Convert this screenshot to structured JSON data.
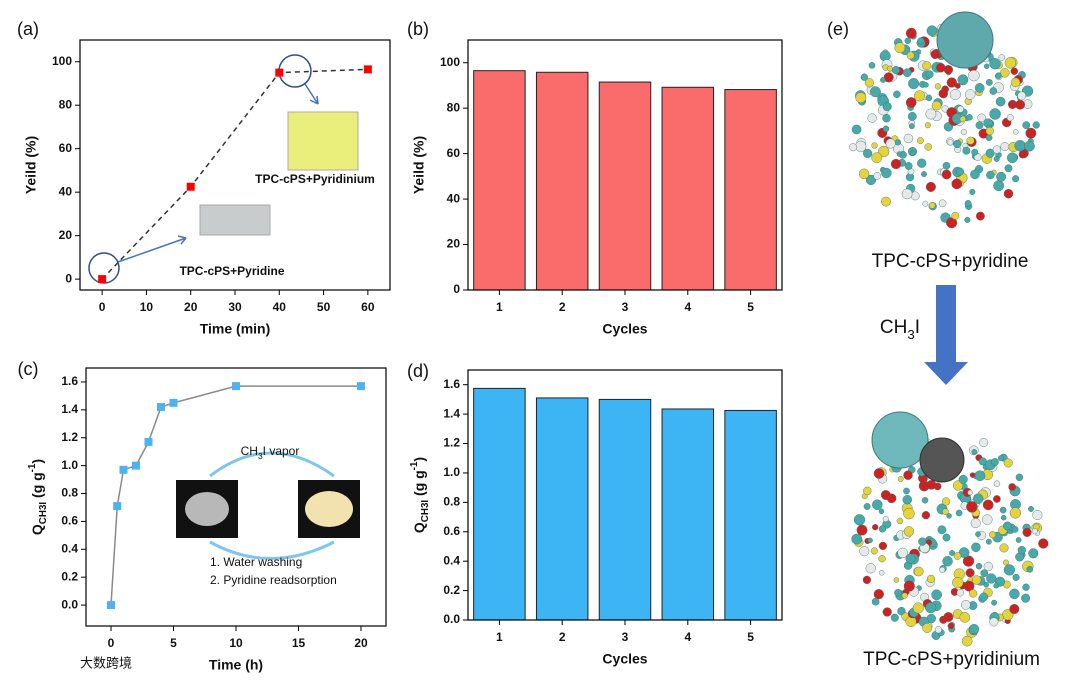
{
  "chart_data": [
    {
      "type": "line",
      "label": "(a)",
      "x": [
        0,
        20,
        40,
        60
      ],
      "values": [
        0,
        42.5,
        95,
        96.5
      ],
      "color": "#ff0000",
      "line_color": "#333333",
      "line_style": "dashed",
      "marker": "square",
      "xlim": [
        -5,
        65
      ],
      "xticks": [
        0,
        10,
        20,
        30,
        40,
        50,
        60
      ],
      "ylim": [
        -5,
        110
      ],
      "yticks": [
        0,
        20,
        40,
        60,
        80,
        100
      ],
      "xlabel": "Time (min)",
      "ylabel": "Yeild (%)",
      "annotations": [
        "TPC-cPS+Pyridinium",
        "TPC-cPS+Pyridine"
      ]
    },
    {
      "type": "bar",
      "label": "(b)",
      "categories": [
        "1",
        "2",
        "3",
        "4",
        "5"
      ],
      "values": [
        96.5,
        95.8,
        91.5,
        89.2,
        88.2
      ],
      "color": "#fa6b6b",
      "ylim": [
        0,
        110
      ],
      "yticks": [
        0,
        20,
        40,
        60,
        80,
        100
      ],
      "xlabel": "Cycles",
      "ylabel": "Yeild (%)"
    },
    {
      "type": "line",
      "label": "(c)",
      "x": [
        0,
        0.5,
        1,
        2,
        3,
        4,
        5,
        10,
        20
      ],
      "values": [
        0,
        0.71,
        0.97,
        1.0,
        1.17,
        1.42,
        1.45,
        1.57,
        1.57
      ],
      "color": "#4db3f0",
      "line_color": "#8a8a8a",
      "line_style": "solid",
      "marker": "square",
      "xlim": [
        -2,
        22
      ],
      "xticks": [
        0,
        5,
        10,
        15,
        20
      ],
      "ylim": [
        -0.15,
        1.7
      ],
      "yticks": [
        {
          "value": 0,
          "label": "0.0"
        },
        {
          "value": 0.2,
          "label": "0.2"
        },
        {
          "value": 0.4,
          "label": "0.4"
        },
        {
          "value": 0.6,
          "label": "0.6"
        },
        {
          "value": 0.8,
          "label": "0.8"
        },
        {
          "value": 1,
          "label": "1.0"
        },
        {
          "value": 1.2,
          "label": "1.2"
        },
        {
          "value": 1.4,
          "label": "1.4"
        },
        {
          "value": 1.6,
          "label": "1.6"
        }
      ],
      "xlabel": "Time (h)",
      "ylabel": [
        {
          "text": "Q"
        },
        {
          "text": "CH3I",
          "script": "sub"
        },
        {
          "text": " (g g"
        },
        {
          "text": "-1",
          "script": "sup"
        },
        {
          "text": ")"
        }
      ],
      "annotations": [
        [
          {
            "text": "CH"
          },
          {
            "text": "3",
            "script": "sub"
          },
          {
            "text": "I vapor"
          }
        ],
        "1. Water washing",
        "2. Pyridine readsorption"
      ]
    },
    {
      "type": "bar",
      "label": "(d)",
      "categories": [
        "1",
        "2",
        "3",
        "4",
        "5"
      ],
      "values": [
        1.575,
        1.51,
        1.5,
        1.435,
        1.425
      ],
      "color": "#3db5f5",
      "ylim": [
        0,
        1.7
      ],
      "yticks": [
        {
          "value": 0,
          "label": "0.0"
        },
        {
          "value": 0.2,
          "label": "0.2"
        },
        {
          "value": 0.4,
          "label": "0.4"
        },
        {
          "value": 0.6,
          "label": "0.6"
        },
        {
          "value": 0.8,
          "label": "0.8"
        },
        {
          "value": 1,
          "label": "1.0"
        },
        {
          "value": 1.2,
          "label": "1.2"
        },
        {
          "value": 1.4,
          "label": "1.4"
        },
        {
          "value": 1.6,
          "label": "1.6"
        }
      ],
      "xlabel": "Cycles",
      "ylabel": [
        {
          "text": "Q"
        },
        {
          "text": "CH3I",
          "script": "sub"
        },
        {
          "text": " (g g"
        },
        {
          "text": "-1",
          "script": "sup"
        },
        {
          "text": ")"
        }
      ]
    }
  ],
  "panel_e": {
    "label": "(e)",
    "top_caption": "TPC-cPS+pyridine",
    "reagent": [
      {
        "text": "CH"
      },
      {
        "text": "3",
        "script": "sub"
      },
      {
        "text": "I"
      }
    ],
    "bottom_caption": "TPC-cPS+pyridinium"
  },
  "watermark": "大数跨境"
}
